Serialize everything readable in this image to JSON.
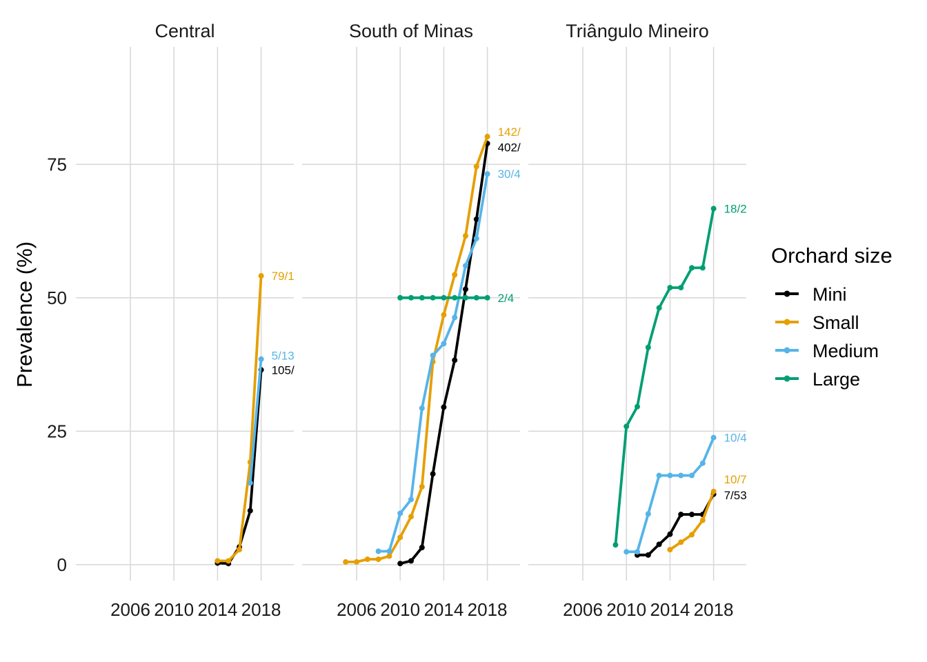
{
  "chart_data": {
    "type": "line",
    "facet_by": "region",
    "ylabel": "Prevalence (%)",
    "xlabel": "",
    "y_ticks": [
      0,
      25,
      50,
      75
    ],
    "x_ticks": [
      2006,
      2010,
      2014,
      2018
    ],
    "xlim": [
      2001,
      2021
    ],
    "ylim": [
      -3,
      97
    ],
    "grid": true,
    "legend": {
      "title": "Orchard size",
      "placement": "right",
      "entries": [
        {
          "name": "Mini",
          "color": "#000000"
        },
        {
          "name": "Small",
          "color": "#E69F00"
        },
        {
          "name": "Medium",
          "color": "#56B4E9"
        },
        {
          "name": "Large",
          "color": "#009E73"
        }
      ]
    },
    "panels": [
      {
        "title": "Central",
        "series": [
          {
            "name": "Mini",
            "points": [
              [
                2014,
                0.3
              ],
              [
                2015,
                0.2
              ],
              [
                2016,
                3.3
              ],
              [
                2017,
                10.1
              ],
              [
                2018,
                36.5
              ]
            ],
            "end_label": "105/",
            "label_y": 36.5
          },
          {
            "name": "Small",
            "points": [
              [
                2014,
                0.7
              ],
              [
                2015,
                0.7
              ],
              [
                2016,
                2.8
              ],
              [
                2017,
                19.2
              ],
              [
                2018,
                54.1
              ]
            ],
            "end_label": "79/1",
            "label_y": 54.1
          },
          {
            "name": "Medium",
            "points": [
              [
                2017,
                15.3
              ],
              [
                2018,
                38.5
              ]
            ],
            "end_label": "5/13",
            "label_y": 39.2
          }
        ]
      },
      {
        "title": "South of Minas",
        "series": [
          {
            "name": "Mini",
            "points": [
              [
                2010,
                0.2
              ],
              [
                2011,
                0.7
              ],
              [
                2012,
                3.2
              ],
              [
                2013,
                17.0
              ],
              [
                2014,
                29.5
              ],
              [
                2015,
                38.3
              ],
              [
                2016,
                51.6
              ],
              [
                2017,
                64.7
              ],
              [
                2018,
                78.9
              ]
            ],
            "end_label": "402/",
            "label_y": 78.2
          },
          {
            "name": "Small",
            "points": [
              [
                2005,
                0.5
              ],
              [
                2006,
                0.5
              ],
              [
                2007,
                1.0
              ],
              [
                2008,
                1.0
              ],
              [
                2009,
                1.6
              ],
              [
                2010,
                5.1
              ],
              [
                2011,
                9.0
              ],
              [
                2012,
                14.6
              ],
              [
                2013,
                38.0
              ],
              [
                2014,
                46.8
              ],
              [
                2015,
                54.3
              ],
              [
                2016,
                61.6
              ],
              [
                2017,
                74.6
              ],
              [
                2018,
                80.2
              ]
            ],
            "end_label": "142/",
            "label_y": 81.1
          },
          {
            "name": "Medium",
            "points": [
              [
                2008,
                2.5
              ],
              [
                2009,
                2.5
              ],
              [
                2010,
                9.6
              ],
              [
                2011,
                12.2
              ],
              [
                2012,
                29.3
              ],
              [
                2013,
                39.2
              ],
              [
                2014,
                41.4
              ],
              [
                2015,
                46.3
              ],
              [
                2016,
                56.0
              ],
              [
                2017,
                61.1
              ],
              [
                2018,
                73.2
              ]
            ],
            "end_label": "30/4",
            "label_y": 73.2
          },
          {
            "name": "Large",
            "points": [
              [
                2010,
                50.0
              ],
              [
                2011,
                50.0
              ],
              [
                2012,
                50.0
              ],
              [
                2013,
                50.0
              ],
              [
                2014,
                50.0
              ],
              [
                2015,
                50.0
              ],
              [
                2016,
                50.0
              ],
              [
                2017,
                50.0
              ],
              [
                2018,
                50.0
              ]
            ],
            "end_label": "2/4",
            "label_y": 50.0
          }
        ]
      },
      {
        "title": "Triângulo Mineiro",
        "series": [
          {
            "name": "Mini",
            "points": [
              [
                2011,
                1.8
              ],
              [
                2012,
                1.8
              ],
              [
                2013,
                3.8
              ],
              [
                2014,
                5.7
              ],
              [
                2015,
                9.4
              ],
              [
                2016,
                9.4
              ],
              [
                2017,
                9.4
              ],
              [
                2018,
                13.2
              ]
            ],
            "end_label": "7/53",
            "label_y": 13.0
          },
          {
            "name": "Small",
            "points": [
              [
                2014,
                2.8
              ],
              [
                2015,
                4.2
              ],
              [
                2016,
                5.6
              ],
              [
                2017,
                8.3
              ],
              [
                2018,
                13.7
              ]
            ],
            "end_label": "10/7",
            "label_y": 16.0
          },
          {
            "name": "Medium",
            "points": [
              [
                2010,
                2.4
              ],
              [
                2011,
                2.4
              ],
              [
                2012,
                9.5
              ],
              [
                2013,
                16.7
              ],
              [
                2014,
                16.7
              ],
              [
                2015,
                16.7
              ],
              [
                2016,
                16.7
              ],
              [
                2017,
                19.0
              ],
              [
                2018,
                23.8
              ]
            ],
            "end_label": "10/4",
            "label_y": 23.8
          },
          {
            "name": "Large",
            "points": [
              [
                2009,
                3.7
              ],
              [
                2010,
                25.9
              ],
              [
                2011,
                29.6
              ],
              [
                2012,
                40.7
              ],
              [
                2013,
                48.1
              ],
              [
                2014,
                51.9
              ],
              [
                2015,
                51.9
              ],
              [
                2016,
                55.6
              ],
              [
                2017,
                55.6
              ],
              [
                2018,
                66.7
              ]
            ],
            "end_label": "18/2",
            "label_y": 66.7
          }
        ]
      }
    ]
  }
}
